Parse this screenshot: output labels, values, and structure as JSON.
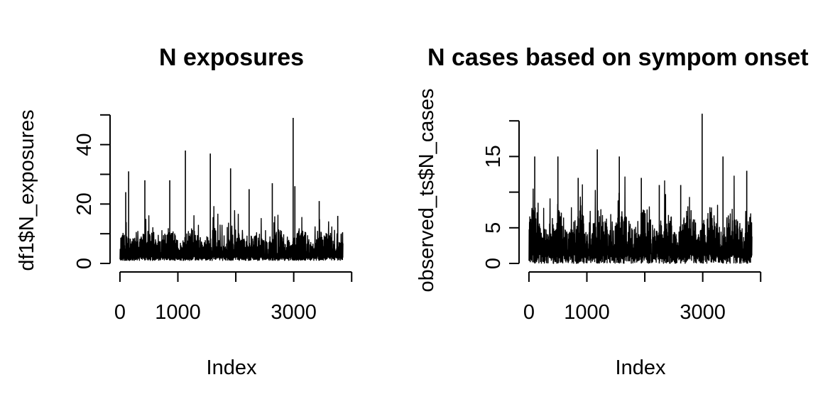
{
  "chart_data": [
    {
      "type": "line",
      "title": "N exposures",
      "xlabel": "Index",
      "ylabel": "df1$N_exposures",
      "xlim": [
        1,
        3850
      ],
      "ylim": [
        0,
        50
      ],
      "x_ticks": [
        0,
        1000,
        2000,
        3000,
        4000
      ],
      "x_tick_labels": [
        "0",
        "1000",
        "",
        "3000",
        ""
      ],
      "y_ticks": [
        0,
        10,
        20,
        30,
        40,
        50
      ],
      "y_tick_labels": [
        "0",
        "",
        "20",
        "",
        "40",
        ""
      ],
      "summary": {
        "n_points": 3850,
        "baseline": 1,
        "typical_low": 2,
        "typical_high": 12,
        "peaks": [
          {
            "x": 100,
            "y": 24
          },
          {
            "x": 150,
            "y": 31
          },
          {
            "x": 430,
            "y": 28
          },
          {
            "x": 860,
            "y": 28
          },
          {
            "x": 1130,
            "y": 38
          },
          {
            "x": 1560,
            "y": 37
          },
          {
            "x": 1910,
            "y": 32
          },
          {
            "x": 2230,
            "y": 25
          },
          {
            "x": 2630,
            "y": 27
          },
          {
            "x": 2990,
            "y": 49
          },
          {
            "x": 3020,
            "y": 26
          },
          {
            "x": 3440,
            "y": 21
          },
          {
            "x": 3760,
            "y": 16
          }
        ]
      }
    },
    {
      "type": "line",
      "title": "N cases based on sympom onset",
      "xlabel": "Index",
      "ylabel": "observed_ts$N_cases",
      "xlim": [
        1,
        3850
      ],
      "ylim": [
        0,
        20
      ],
      "x_ticks": [
        0,
        1000,
        2000,
        3000,
        4000
      ],
      "x_tick_labels": [
        "0",
        "1000",
        "",
        "3000",
        ""
      ],
      "y_ticks": [
        0,
        5,
        10,
        15,
        20
      ],
      "y_tick_labels": [
        "0",
        "5",
        "",
        "15",
        ""
      ],
      "summary": {
        "n_points": 3850,
        "baseline": 0,
        "typical_low": 1,
        "typical_high": 8,
        "peaks": [
          {
            "x": 100,
            "y": 15
          },
          {
            "x": 500,
            "y": 15
          },
          {
            "x": 850,
            "y": 12
          },
          {
            "x": 1180,
            "y": 16
          },
          {
            "x": 1560,
            "y": 15
          },
          {
            "x": 1940,
            "y": 12
          },
          {
            "x": 2250,
            "y": 11
          },
          {
            "x": 2620,
            "y": 11
          },
          {
            "x": 2990,
            "y": 21
          },
          {
            "x": 3350,
            "y": 15
          },
          {
            "x": 3760,
            "y": 13
          }
        ]
      }
    }
  ]
}
